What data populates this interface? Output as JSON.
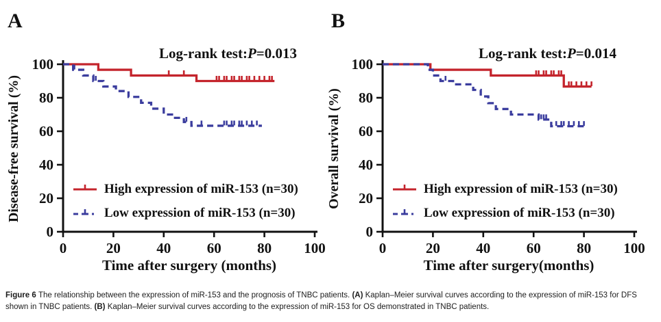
{
  "colors": {
    "high": "#c4242c",
    "low": "#3b3d9e",
    "axis": "#111111",
    "text": "#111111"
  },
  "panels": [
    {
      "letter": "A",
      "logrank_prefix": "Log-rank test:",
      "logrank_p": "P",
      "logrank_value": "=0.013",
      "ylabel": "Disease-free survival (%)",
      "xlabel": "Time after surgery (months)",
      "legend_high": "High expression of miR-153 (n=30)",
      "legend_low": "Low expression of miR-153 (n=30)"
    },
    {
      "letter": "B",
      "logrank_prefix": "Log-rank test:",
      "logrank_p": "P",
      "logrank_value": "=0.014",
      "ylabel": "Overall survival (%)",
      "xlabel": "Time after surgery(months)",
      "legend_high": "High expression of miR-153 (n=30)",
      "legend_low": "Low expression of miR-153 (n=30)"
    }
  ],
  "chart_data": [
    {
      "type": "line",
      "subtype": "kaplan-meier-step",
      "title": "Log-rank test:P=0.013",
      "xlabel": "Time after surgery (months)",
      "ylabel": "Disease-free survival (%)",
      "xlim": [
        0,
        100
      ],
      "ylim": [
        0,
        100
      ],
      "xticks": [
        0,
        20,
        40,
        60,
        80,
        100
      ],
      "yticks": [
        0,
        20,
        40,
        60,
        80,
        100
      ],
      "grid": false,
      "legend_position": "lower-left",
      "series": [
        {
          "name": "High expression of miR-153 (n=30)",
          "color": "#c4242c",
          "style": "solid",
          "steps": [
            [
              0,
              100
            ],
            [
              14,
              96.7
            ],
            [
              27,
              93.3
            ],
            [
              53,
              90
            ]
          ],
          "end": 84,
          "censor_times": [
            42,
            48,
            61,
            62,
            64,
            65,
            67,
            68,
            70,
            71,
            73,
            74,
            76,
            78,
            80,
            82,
            83
          ]
        },
        {
          "name": "Low expression of miR-153 (n=30)",
          "color": "#3b3d9e",
          "style": "dashed",
          "steps": [
            [
              0,
              100
            ],
            [
              4,
              96.7
            ],
            [
              8,
              93.3
            ],
            [
              12,
              90
            ],
            [
              16,
              86.7
            ],
            [
              21,
              84
            ],
            [
              26,
              80.5
            ],
            [
              31,
              77
            ],
            [
              35,
              73.5
            ],
            [
              40,
              70
            ],
            [
              44,
              68
            ],
            [
              48,
              65.5
            ],
            [
              51,
              63.3
            ]
          ],
          "end": 79,
          "censor_times": [
            4.5,
            13,
            49,
            55,
            64,
            65,
            67,
            68,
            70,
            71,
            73,
            75,
            77
          ]
        }
      ]
    },
    {
      "type": "line",
      "subtype": "kaplan-meier-step",
      "title": "Log-rank test:P=0.014",
      "xlabel": "Time after surgery(months)",
      "ylabel": "Overall survival (%)",
      "xlim": [
        0,
        100
      ],
      "ylim": [
        0,
        100
      ],
      "xticks": [
        0,
        20,
        40,
        60,
        80,
        100
      ],
      "yticks": [
        0,
        20,
        40,
        60,
        80,
        100
      ],
      "grid": false,
      "legend_position": "lower-left",
      "series": [
        {
          "name": "High expression of miR-153 (n=30)",
          "color": "#c4242c",
          "style": "solid",
          "steps": [
            [
              0,
              100
            ],
            [
              19,
              96.7
            ],
            [
              43,
              93.3
            ],
            [
              72,
              86.7
            ]
          ],
          "end": 83,
          "censor_times": [
            61,
            62,
            64,
            65,
            67,
            68,
            70,
            71,
            74,
            75,
            77,
            79,
            81,
            83
          ]
        },
        {
          "name": "Low expression of miR-153 (n=30)",
          "color": "#3b3d9e",
          "style": "dashed",
          "steps": [
            [
              0,
              100
            ],
            [
              18,
              96.7
            ],
            [
              20,
              93.3
            ],
            [
              23,
              90
            ],
            [
              28,
              88
            ],
            [
              36,
              84.7
            ],
            [
              39,
              80.8
            ],
            [
              42,
              76.8
            ],
            [
              45,
              73.3
            ],
            [
              51,
              70
            ],
            [
              62,
              67
            ],
            [
              67,
              63
            ]
          ],
          "end": 80,
          "censor_times": [
            25,
            63,
            64,
            65,
            69,
            71,
            72,
            74,
            76,
            78,
            80
          ]
        }
      ]
    }
  ],
  "figure": {
    "caption_segments": [
      {
        "text": "Figure 6 ",
        "bold": true
      },
      {
        "text": "The relationship between the expression of miR-153 and the prognosis of TNBC patients. ",
        "bold": false
      },
      {
        "text": "(A) ",
        "bold": true
      },
      {
        "text": "Kaplan–Meier survival curves according to the expression of miR-153 for DFS shown in TNBC patients. ",
        "bold": false
      },
      {
        "text": "(B) ",
        "bold": true
      },
      {
        "text": "Kaplan–Meier survival curves according to the expression of miR-153 for OS demonstrated in TNBC patients.",
        "bold": false
      }
    ]
  }
}
